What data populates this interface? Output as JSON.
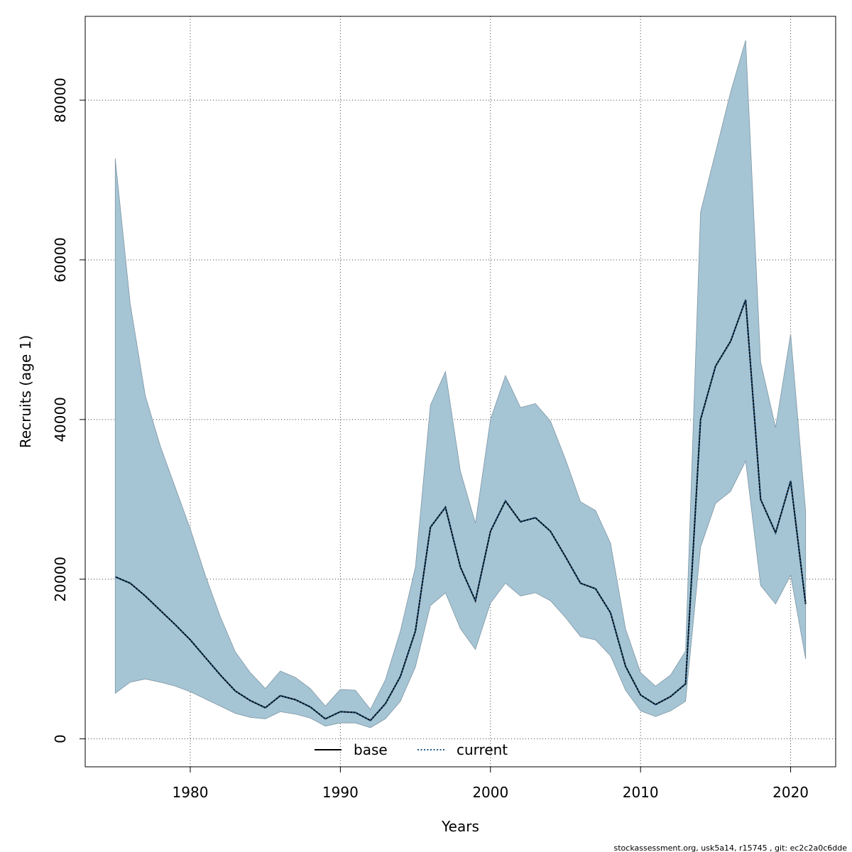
{
  "chart_data": {
    "type": "area",
    "title": "",
    "xlabel": "Years",
    "ylabel": "Recruits (age 1)",
    "xlim": [
      1973,
      2023
    ],
    "ylim": [
      -3500,
      90500
    ],
    "x_ticks": [
      1980,
      1990,
      2000,
      2010,
      2020
    ],
    "y_ticks": [
      0,
      20000,
      40000,
      60000,
      80000
    ],
    "grid": true,
    "legend_placement": "bottom-center",
    "band_color": "#a5c4d4",
    "x": [
      1975,
      1976,
      1977,
      1978,
      1979,
      1980,
      1981,
      1982,
      1983,
      1984,
      1985,
      1986,
      1987,
      1988,
      1989,
      1990,
      1991,
      1992,
      1993,
      1994,
      1995,
      1996,
      1997,
      1998,
      1999,
      2000,
      2001,
      2002,
      2003,
      2004,
      2005,
      2006,
      2007,
      2008,
      2009,
      2010,
      2011,
      2012,
      2013,
      2014,
      2015,
      2016,
      2017,
      2018,
      2019,
      2020,
      2021
    ],
    "upper": [
      72700,
      54500,
      43000,
      36700,
      31500,
      26300,
      20500,
      15300,
      10900,
      8300,
      6300,
      8500,
      7700,
      6300,
      4100,
      6200,
      6100,
      3700,
      7400,
      13500,
      21500,
      41800,
      46000,
      33500,
      27000,
      40000,
      45500,
      41500,
      42000,
      39800,
      35000,
      29700,
      28600,
      24500,
      13800,
      8300,
      6600,
      8000,
      11000,
      66000,
      73500,
      81000,
      87500,
      47200,
      39000,
      50700,
      28500
    ],
    "lower": [
      5700,
      7100,
      7500,
      7100,
      6600,
      5900,
      5000,
      4100,
      3200,
      2700,
      2500,
      3400,
      3100,
      2600,
      1600,
      2000,
      2000,
      1400,
      2500,
      4700,
      9000,
      16700,
      18300,
      13800,
      11200,
      17000,
      19500,
      17900,
      18300,
      17300,
      15200,
      12800,
      12400,
      10400,
      6100,
      3500,
      2800,
      3500,
      4700,
      24000,
      29500,
      31000,
      34800,
      19200,
      16900,
      20500,
      10000
    ],
    "series": [
      {
        "name": "base",
        "style": "solid",
        "color": "#000000",
        "values": [
          20300,
          19500,
          17900,
          16100,
          14300,
          12400,
          10200,
          8000,
          6000,
          4800,
          3900,
          5400,
          4900,
          4000,
          2500,
          3400,
          3300,
          2300,
          4400,
          7800,
          13500,
          26500,
          29000,
          21500,
          17300,
          26000,
          29800,
          27200,
          27700,
          26000,
          22800,
          19500,
          18800,
          15800,
          9100,
          5500,
          4300,
          5300,
          6900,
          40000,
          46700,
          49800,
          55000,
          30000,
          25800,
          32300,
          16900
        ]
      },
      {
        "name": "current",
        "style": "dotted",
        "color": "#1f5a8a",
        "values": [
          20300,
          19500,
          17900,
          16100,
          14300,
          12400,
          10200,
          8000,
          6000,
          4800,
          3900,
          5400,
          4900,
          4000,
          2500,
          3400,
          3300,
          2300,
          4400,
          7800,
          13500,
          26500,
          29000,
          21500,
          17300,
          26000,
          29800,
          27200,
          27700,
          26000,
          22800,
          19500,
          18800,
          15800,
          9100,
          5500,
          4300,
          5300,
          6900,
          40000,
          46700,
          49800,
          55000,
          30000,
          25800,
          32300,
          16900
        ]
      }
    ]
  },
  "footer_text": "stockassessment.org, usk5a14, r15745 , git: ec2c2a0c6dde"
}
